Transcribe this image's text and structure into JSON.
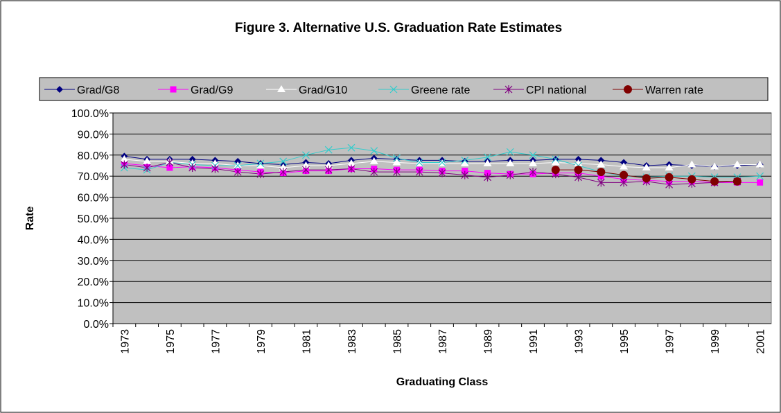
{
  "chart_data": {
    "type": "line",
    "title": "Figure 3. Alternative U.S. Graduation Rate Estimates",
    "x_label": "Graduating Class",
    "y_label": "Rate",
    "categories": [
      "1973",
      null,
      "1975",
      null,
      "1977",
      null,
      "1979",
      null,
      "1981",
      null,
      "1983",
      null,
      "1985",
      null,
      "1987",
      null,
      "1989",
      null,
      "1991",
      null,
      "1993",
      null,
      "1995",
      null,
      "1997",
      null,
      "1999",
      null,
      "2001"
    ],
    "ylim": [
      0,
      100
    ],
    "yticks": [
      {
        "value": 0,
        "label": "0.0%"
      },
      {
        "value": 10,
        "label": "10.0%"
      },
      {
        "value": 20,
        "label": "20.0%"
      },
      {
        "value": 30,
        "label": "30.0%"
      },
      {
        "value": 40,
        "label": "40.0%"
      },
      {
        "value": 50,
        "label": "50.0%"
      },
      {
        "value": 60,
        "label": "60.0%"
      },
      {
        "value": 70,
        "label": "70.0%"
      },
      {
        "value": 80,
        "label": "80.0%"
      },
      {
        "value": 90,
        "label": "90.0%"
      },
      {
        "value": 100,
        "label": "100.0%"
      }
    ],
    "grid": true,
    "legend": "top",
    "series": [
      {
        "name": "Grad/G8",
        "color": "#000080",
        "marker": "diamond",
        "values": [
          79.5,
          78,
          78,
          78,
          77.5,
          77,
          76,
          75.5,
          76.5,
          76,
          77.5,
          78.5,
          78,
          77.5,
          77.5,
          77,
          77,
          77.5,
          77.5,
          78,
          78,
          77.5,
          76.5,
          75,
          75.5,
          75,
          74.5,
          75,
          75.5
        ]
      },
      {
        "name": "Grad/G9",
        "color": "#ff00ff",
        "marker": "square",
        "values": [
          76,
          75,
          74,
          74.5,
          74,
          73,
          72,
          71.5,
          72.5,
          72.5,
          73.5,
          73.5,
          73,
          73,
          72.5,
          72.5,
          71.5,
          71,
          71,
          71.5,
          71.5,
          70,
          68.5,
          68,
          67.5,
          67.5,
          67,
          67,
          67
        ]
      },
      {
        "name": "Grad/G10",
        "color": "#ffffff",
        "marker": "triangle",
        "values": [
          78,
          77,
          77,
          76,
          76,
          75,
          75,
          74,
          75,
          75,
          76,
          77,
          76.5,
          76,
          76,
          76,
          76,
          76,
          76,
          76.5,
          76,
          75.5,
          74.5,
          74,
          74,
          75.5,
          74.5,
          75.5,
          75.5
        ]
      },
      {
        "name": "Greene rate",
        "color": "#33cccc",
        "marker": "x",
        "values": [
          74,
          73,
          76.5,
          75.5,
          75,
          75,
          76,
          77,
          80,
          82.5,
          83.5,
          82,
          78.5,
          76.5,
          76.5,
          77.5,
          79,
          81.5,
          80,
          78,
          75,
          72,
          70,
          69.5,
          70,
          70,
          69.5,
          69.5,
          70
        ]
      },
      {
        "name": "CPI national",
        "color": "#800080",
        "marker": "star",
        "values": [
          75.5,
          74,
          76.5,
          74,
          73.5,
          72,
          71,
          72,
          73,
          73,
          73.5,
          72,
          72,
          72,
          71.5,
          70.5,
          69.5,
          70.5,
          72,
          71,
          69.5,
          67,
          67,
          67.5,
          66,
          66.5,
          67,
          67.5,
          null
        ]
      },
      {
        "name": "Warren rate",
        "color": "#800000",
        "marker": "circle",
        "values": [
          null,
          null,
          null,
          null,
          null,
          null,
          null,
          null,
          null,
          null,
          null,
          null,
          null,
          null,
          null,
          null,
          null,
          null,
          null,
          73,
          73,
          72,
          70.5,
          69,
          69.5,
          68.5,
          67.5,
          67.5,
          null
        ]
      }
    ]
  }
}
